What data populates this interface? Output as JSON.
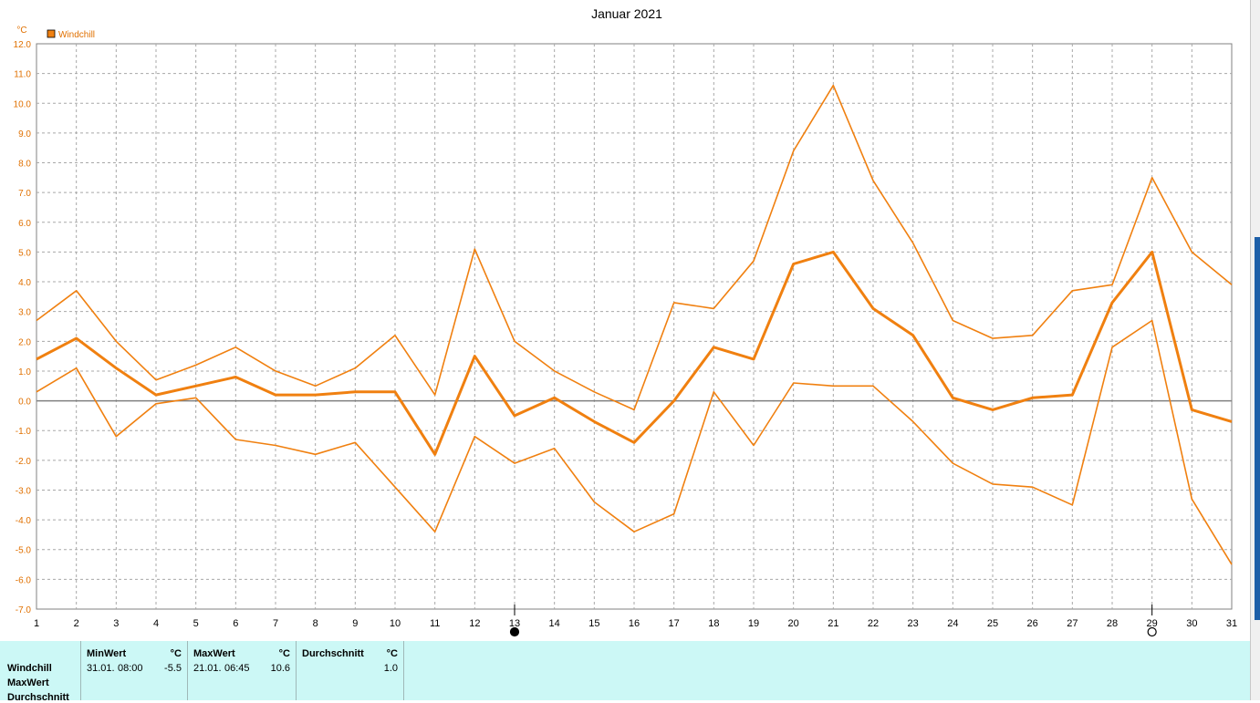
{
  "chart_data": {
    "type": "line",
    "title": "Januar 2021",
    "ylabel": "°C",
    "xlabel": "",
    "ylim": [
      -7.0,
      12.0
    ],
    "yticks": [
      "12.0",
      "11.0",
      "10.0",
      "9.0",
      "8.0",
      "7.0",
      "6.0",
      "5.0",
      "4.0",
      "3.0",
      "2.0",
      "1.0",
      "0.0",
      "-1.0",
      "-2.0",
      "-3.0",
      "-4.0",
      "-5.0",
      "-6.0",
      "-7.0"
    ],
    "x": [
      1,
      2,
      3,
      4,
      5,
      6,
      7,
      8,
      9,
      10,
      11,
      12,
      13,
      14,
      15,
      16,
      17,
      18,
      19,
      20,
      21,
      22,
      23,
      24,
      25,
      26,
      27,
      28,
      29,
      30,
      31
    ],
    "grid": true,
    "legend": "top-left",
    "legend_entries": [
      "Windchill"
    ],
    "color": "#f08010",
    "series": [
      {
        "name": "Windchill",
        "role": "max",
        "values": [
          2.7,
          3.7,
          2.0,
          0.7,
          1.2,
          1.8,
          1.0,
          0.5,
          1.1,
          2.2,
          0.2,
          5.1,
          2.0,
          1.0,
          0.3,
          -0.3,
          3.3,
          3.1,
          4.7,
          8.4,
          10.6,
          7.4,
          5.3,
          2.7,
          2.1,
          2.2,
          3.7,
          3.9,
          7.5,
          5.0,
          3.9
        ]
      },
      {
        "name": "Windchill",
        "role": "avg",
        "values": [
          1.4,
          2.1,
          1.1,
          0.2,
          0.5,
          0.8,
          0.2,
          0.2,
          0.3,
          0.3,
          -1.8,
          1.5,
          -0.5,
          0.1,
          -0.7,
          -1.4,
          0.0,
          1.8,
          1.4,
          4.6,
          5.0,
          3.1,
          2.2,
          0.1,
          -0.3,
          0.1,
          0.2,
          3.3,
          5.0,
          -0.3,
          -0.7
        ]
      },
      {
        "name": "Windchill",
        "role": "min",
        "values": [
          0.3,
          1.1,
          -1.2,
          -0.1,
          0.1,
          -1.3,
          -1.5,
          -1.8,
          -1.4,
          -2.9,
          -4.4,
          -1.2,
          -2.1,
          -1.6,
          -3.4,
          -4.4,
          -3.8,
          0.3,
          -1.5,
          0.6,
          0.5,
          0.5,
          -0.7,
          -2.1,
          -2.8,
          -2.9,
          -3.5,
          1.8,
          2.7,
          -3.3,
          -5.5
        ]
      }
    ],
    "moon_markers": [
      {
        "day": 13,
        "phase": "new-moon"
      },
      {
        "day": 29,
        "phase": "full-moon"
      }
    ]
  },
  "stats": {
    "rows": [
      "Windchill",
      "MaxWert",
      "Durchschnitt"
    ],
    "min": {
      "header": "MinWert",
      "unit": "°C",
      "date": "31.01.",
      "time": "08:00",
      "value": "-5.5"
    },
    "max": {
      "header": "MaxWert",
      "unit": "°C",
      "date": "21.01.",
      "time": "06:45",
      "value": "10.6"
    },
    "avg": {
      "header": "Durchschnitt",
      "unit": "°C",
      "value": "1.0"
    }
  }
}
